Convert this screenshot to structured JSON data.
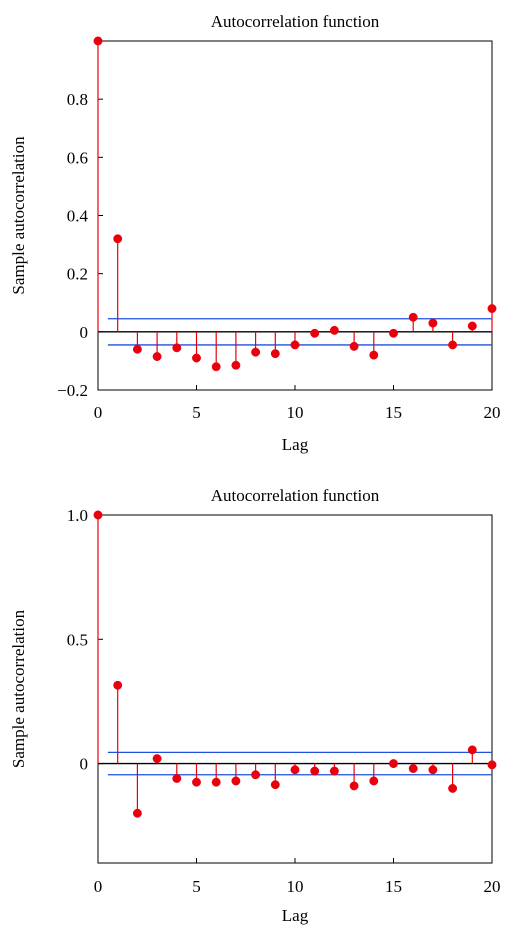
{
  "colors": {
    "stem": "#e8000b",
    "marker": "#e8000b",
    "confidence": "#1f4fe0",
    "zero_line": "#000000",
    "axes": "#000000"
  },
  "chart_data": [
    {
      "type": "stem",
      "title": "Autocorrelation function",
      "xlabel": "Lag",
      "ylabel": "Sample autocorrelation",
      "xlim": [
        0,
        20
      ],
      "ylim": [
        -0.2,
        1.0
      ],
      "xticks": [
        0,
        5,
        10,
        15,
        20
      ],
      "xtick_labels": [
        "0",
        "5",
        "10",
        "15",
        "20"
      ],
      "yticks": [
        -0.2,
        0,
        0.2,
        0.4,
        0.6,
        0.8
      ],
      "ytick_labels": [
        "−0.2",
        "0",
        "0.2",
        "0.4",
        "0.6",
        "0.8"
      ],
      "confidence_bound": 0.045,
      "lags": [
        0,
        1,
        2,
        3,
        4,
        5,
        6,
        7,
        8,
        9,
        10,
        11,
        12,
        13,
        14,
        15,
        16,
        17,
        18,
        19,
        20
      ],
      "values": [
        1.0,
        0.32,
        -0.06,
        -0.085,
        -0.055,
        -0.09,
        -0.12,
        -0.115,
        -0.07,
        -0.075,
        -0.045,
        -0.005,
        0.005,
        -0.05,
        -0.08,
        -0.005,
        0.05,
        0.03,
        -0.045,
        0.02,
        0.08
      ],
      "grid": false
    },
    {
      "type": "stem",
      "title": "Autocorrelation function",
      "xlabel": "Lag",
      "ylabel": "Sample autocorrelation",
      "xlim": [
        0,
        20
      ],
      "ylim": [
        -0.4,
        1.0
      ],
      "xticks": [
        0,
        5,
        10,
        15,
        20
      ],
      "xtick_labels": [
        "0",
        "5",
        "10",
        "15",
        "20"
      ],
      "yticks": [
        0,
        0.5,
        1.0
      ],
      "ytick_labels": [
        "0",
        "0.5",
        "1.0"
      ],
      "confidence_bound": 0.045,
      "lags": [
        0,
        1,
        2,
        3,
        4,
        5,
        6,
        7,
        8,
        9,
        10,
        11,
        12,
        13,
        14,
        15,
        16,
        17,
        18,
        19,
        20
      ],
      "values": [
        1.0,
        0.315,
        -0.2,
        0.02,
        -0.06,
        -0.075,
        -0.075,
        -0.07,
        -0.045,
        -0.085,
        -0.025,
        -0.03,
        -0.03,
        -0.09,
        -0.07,
        0.0,
        -0.02,
        -0.025,
        -0.1,
        0.055,
        -0.005
      ],
      "grid": false
    }
  ]
}
